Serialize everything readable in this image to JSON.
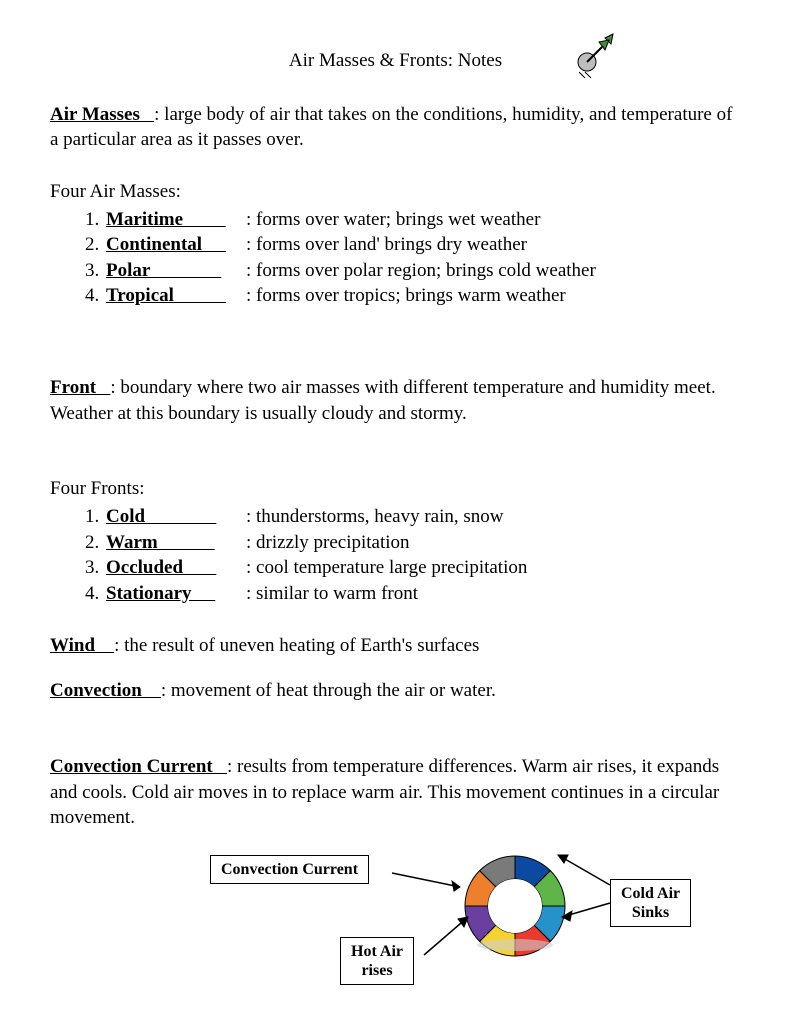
{
  "title": "Air Masses & Fronts: Notes",
  "air_masses": {
    "term": "Air Masses   ",
    "definition": ": large body of air that takes on the conditions, humidity, and temperature of a particular area as it passes over."
  },
  "four_air_masses_label": "Four Air Masses:",
  "air_mass_types": [
    {
      "name": "Maritime         ",
      "desc": ": forms over water; brings wet weather"
    },
    {
      "name": "Continental     ",
      "desc": ": forms over land' brings dry weather"
    },
    {
      "name": "Polar               ",
      "desc": ": forms over polar region; brings cold weather"
    },
    {
      "name": "Tropical           ",
      "desc": ": forms over tropics; brings warm weather"
    }
  ],
  "front": {
    "term": "Front   ",
    "definition": ": boundary where two air masses with different temperature and humidity meet.  Weather at this boundary is usually cloudy and stormy."
  },
  "four_fronts_label": "Four Fronts:",
  "front_types": [
    {
      "name": "Cold               ",
      "desc": ": thunderstorms, heavy rain, snow"
    },
    {
      "name": "Warm            ",
      "desc": ": drizzly precipitation"
    },
    {
      "name": "Occluded       ",
      "desc": ": cool temperature large precipitation"
    },
    {
      "name": "Stationary     ",
      "desc": ": similar to warm front"
    }
  ],
  "wind": {
    "term": "Wind    ",
    "definition": ": the result of uneven heating of Earth's surfaces"
  },
  "convection": {
    "term": "Convection    ",
    "definition": ": movement of heat through the air or water."
  },
  "convection_current": {
    "term": "Convection Current   ",
    "definition": ": results from temperature differences.  Warm air rises, it expands and cools.  Cold air moves in to replace warm air.  This movement continues in a circular movement."
  },
  "diagram": {
    "box_convection": "Convection Current",
    "box_hot": "Hot Air\nrises",
    "box_cold": "Cold Air\nSinks",
    "ring_colors": [
      "#0b4aa0",
      "#5eb648",
      "#2792c9",
      "#e83a2e",
      "#f6d22f",
      "#6b3fa0",
      "#ee7f2d",
      "#7a7a7a"
    ],
    "ring_outer_r": 50,
    "ring_inner_r": 27,
    "ring_bg": "#ffffff",
    "box_border": "#000000"
  }
}
